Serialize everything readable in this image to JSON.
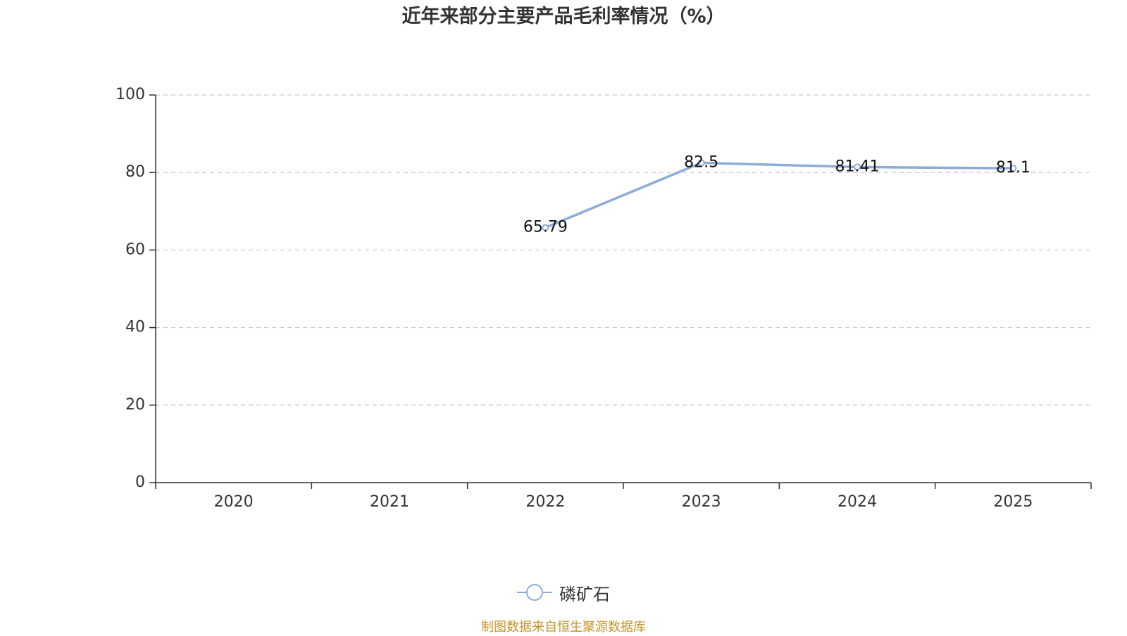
{
  "chart_data": {
    "type": "line",
    "title": "近年来部分主要产品毛利率情况（%）",
    "categories": [
      "2020",
      "2021",
      "2022",
      "2023",
      "2024",
      "2025"
    ],
    "series": [
      {
        "name": "磷矿石",
        "values": [
          null,
          null,
          65.79,
          82.5,
          81.41,
          81.1
        ],
        "labels": [
          "",
          "",
          "65.79",
          "82.5",
          "81.41",
          "81.1"
        ],
        "color": "#8eacd6"
      }
    ],
    "ylim": [
      0,
      100
    ],
    "yticks": [
      "0",
      "20",
      "40",
      "60",
      "80",
      "100"
    ],
    "grid": true,
    "legend_position": "bottom-center"
  },
  "footer": {
    "source": "制图数据来自恒生聚源数据库"
  }
}
